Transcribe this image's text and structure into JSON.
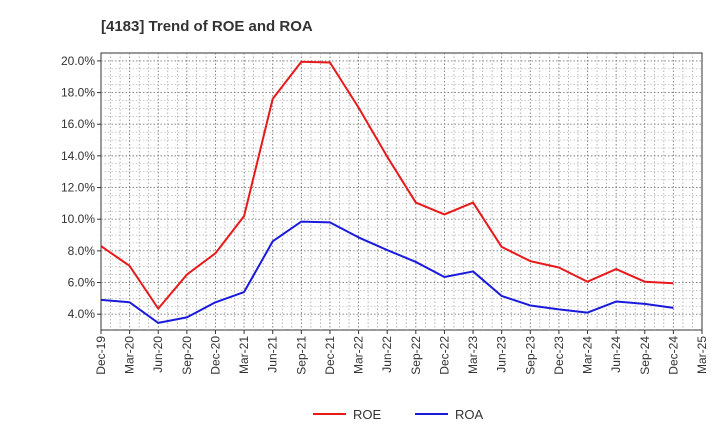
{
  "chart_data": {
    "type": "line",
    "title": "[4183]  Trend of ROE and ROA",
    "xlabel": "",
    "ylabel": "",
    "x": [
      "Dec-19",
      "Mar-20",
      "Jun-20",
      "Sep-20",
      "Dec-20",
      "Mar-21",
      "Jun-21",
      "Sep-21",
      "Dec-21",
      "Mar-22",
      "Jun-22",
      "Sep-22",
      "Dec-22",
      "Mar-23",
      "Jun-23",
      "Sep-23",
      "Dec-23",
      "Mar-24",
      "Jun-24",
      "Sep-24",
      "Dec-24",
      "Mar-25"
    ],
    "ylim": [
      3.0,
      20.5
    ],
    "yticks": [
      4.0,
      6.0,
      8.0,
      10.0,
      12.0,
      14.0,
      16.0,
      18.0,
      20.0
    ],
    "ytick_labels": [
      "4.0%",
      "6.0%",
      "8.0%",
      "10.0%",
      "12.0%",
      "14.0%",
      "16.0%",
      "18.0%",
      "20.0%"
    ],
    "grid": true,
    "legend_position": "bottom-center",
    "series": [
      {
        "name": "ROE",
        "color": "#e8191a",
        "values": [
          8.3,
          7.05,
          4.35,
          6.5,
          7.85,
          10.2,
          17.6,
          19.95,
          19.9,
          17.05,
          13.95,
          11.05,
          10.3,
          11.05,
          8.25,
          7.35,
          6.95,
          6.05,
          6.85,
          6.05,
          5.95,
          null
        ]
      },
      {
        "name": "ROA",
        "color": "#1a1adc",
        "values": [
          4.9,
          4.75,
          3.45,
          3.8,
          4.75,
          5.4,
          8.6,
          9.85,
          9.8,
          8.85,
          8.05,
          7.3,
          6.35,
          6.7,
          5.15,
          4.55,
          4.3,
          4.1,
          4.8,
          4.65,
          4.4,
          null
        ]
      }
    ]
  }
}
